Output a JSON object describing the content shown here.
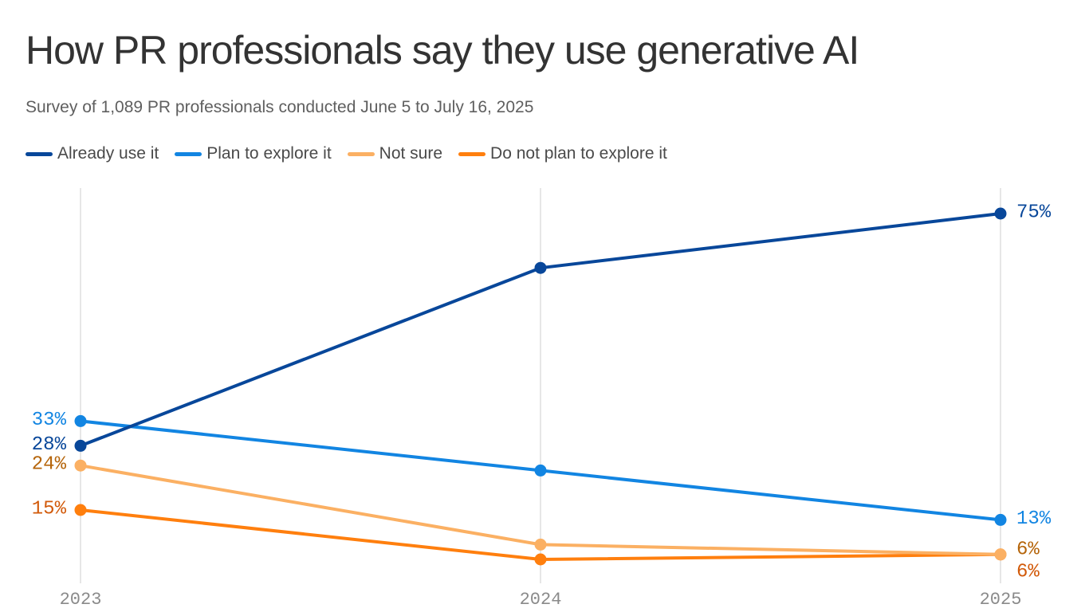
{
  "title": "How PR professionals say they use generative AI",
  "subtitle": "Survey of 1,089 PR professionals conducted June 5 to July 16, 2025",
  "chart_data": {
    "type": "line",
    "title": "How PR professionals say they use generative AI",
    "subtitle": "Survey of 1,089 PR professionals conducted June 5 to July 16, 2025",
    "x": [
      "2023",
      "2024",
      "2025"
    ],
    "ylim": [
      0,
      80
    ],
    "grid": "vertical",
    "legend": "top",
    "series": [
      {
        "name": "Already use it",
        "values": [
          28,
          64,
          75
        ],
        "color": "#08479a",
        "labels": [
          "28%",
          "",
          "75%"
        ],
        "label_color": "#08479a"
      },
      {
        "name": "Plan to explore it",
        "values": [
          33,
          23,
          13
        ],
        "color": "#1285e2",
        "labels": [
          "33%",
          "",
          "13%"
        ],
        "label_color": "#1285e2"
      },
      {
        "name": "Not sure",
        "values": [
          24,
          8,
          6
        ],
        "color": "#fbb063",
        "labels": [
          "24%",
          "",
          "6%"
        ],
        "label_color": "#b5650b"
      },
      {
        "name": "Do not plan to explore it",
        "values": [
          15,
          5,
          6
        ],
        "color": "#ff7f0e",
        "labels": [
          "15%",
          "",
          "6%"
        ],
        "label_color": "#d25a0a"
      }
    ]
  }
}
